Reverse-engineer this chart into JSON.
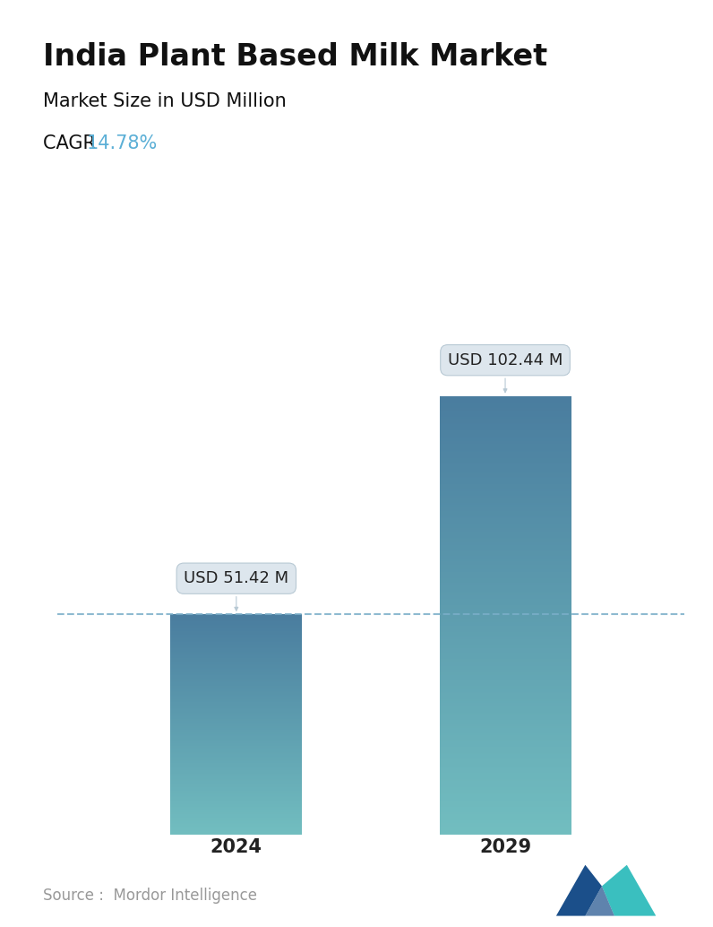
{
  "title": "India Plant Based Milk Market",
  "subtitle": "Market Size in USD Million",
  "cagr_label": "CAGR  ",
  "cagr_value": "14.78%",
  "cagr_color": "#5BAFD6",
  "categories": [
    "2024",
    "2029"
  ],
  "values": [
    51.42,
    102.44
  ],
  "value_labels": [
    "USD 51.42 M",
    "USD 102.44 M"
  ],
  "bar_color_top": "#4A7D9F",
  "bar_color_bottom": "#72BEC0",
  "dashed_line_color": "#7AAEC8",
  "dashed_line_value": 51.42,
  "source_text": "Source :  Mordor Intelligence",
  "background_color": "#FFFFFF",
  "title_fontsize": 24,
  "subtitle_fontsize": 15,
  "cagr_fontsize": 15,
  "axis_label_fontsize": 15,
  "annotation_fontsize": 13,
  "source_fontsize": 12,
  "ylim": [
    0,
    130
  ]
}
